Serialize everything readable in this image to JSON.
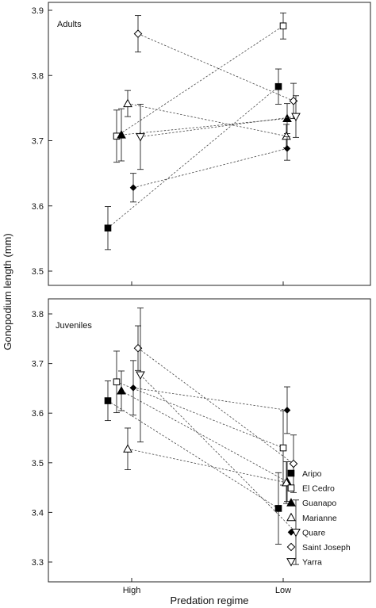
{
  "figure": {
    "ylabel": "Gonopodium length (mm)",
    "xlabel": "Predation regime"
  },
  "chart_data": [
    {
      "type": "line",
      "panel_label": "Adults",
      "categories": [
        "High",
        "Low"
      ],
      "ylim": [
        3.45,
        3.92
      ],
      "yticks": [
        "3.5",
        "3.6",
        "3.7",
        "3.8",
        "3.9"
      ],
      "series": [
        {
          "name": "Aripo",
          "marker": "square-filled",
          "values": [
            3.566,
            3.783
          ],
          "err": [
            0.033,
            0.027
          ]
        },
        {
          "name": "El Cedro",
          "marker": "square-open",
          "values": [
            3.707,
            3.876
          ],
          "err": [
            0.04,
            0.02
          ]
        },
        {
          "name": "Guanapo",
          "marker": "triangle-filled",
          "values": [
            3.709,
            3.734
          ],
          "err": [
            0.04,
            0.023
          ]
        },
        {
          "name": "Marianne",
          "marker": "triangle-open",
          "values": [
            3.757,
            3.707
          ],
          "err": [
            0.02,
            0.018
          ]
        },
        {
          "name": "Quare",
          "marker": "diamond-filled",
          "values": [
            3.628,
            3.688
          ],
          "err": [
            0.022,
            0.018
          ]
        },
        {
          "name": "Saint Joseph",
          "marker": "diamond-open",
          "values": [
            3.864,
            3.761
          ],
          "err": [
            0.028,
            0.027
          ]
        },
        {
          "name": "Yarra",
          "marker": "triangle-down-open",
          "values": [
            3.706,
            3.737
          ],
          "err": [
            0.05,
            0.032
          ]
        }
      ]
    },
    {
      "type": "line",
      "panel_label": "Juveniles",
      "categories": [
        "High",
        "Low"
      ],
      "ylim": [
        3.26,
        3.84
      ],
      "yticks": [
        "3.3",
        "3.4",
        "3.5",
        "3.6",
        "3.7",
        "3.8"
      ],
      "legend_position": "bottom-right",
      "series": [
        {
          "name": "Aripo",
          "marker": "square-filled",
          "values": [
            3.625,
            3.408
          ],
          "err": [
            0.04,
            0.072
          ]
        },
        {
          "name": "El Cedro",
          "marker": "square-open",
          "values": [
            3.663,
            3.53
          ],
          "err": [
            0.062,
            0.075
          ]
        },
        {
          "name": "Guanapo",
          "marker": "triangle-filled",
          "values": [
            3.645,
            3.462
          ],
          "err": [
            0.04,
            0.04
          ]
        },
        {
          "name": "Marianne",
          "marker": "triangle-open",
          "values": [
            3.528,
            3.46
          ],
          "err": [
            0.042,
            0.042
          ]
        },
        {
          "name": "Quare",
          "marker": "diamond-filled",
          "values": [
            3.651,
            3.606
          ],
          "err": [
            0.055,
            0.047
          ]
        },
        {
          "name": "Saint Joseph",
          "marker": "diamond-open",
          "values": [
            3.731,
            3.498
          ],
          "err": [
            0.045,
            0.058
          ]
        },
        {
          "name": "Yarra",
          "marker": "triangle-down-open",
          "values": [
            3.677,
            3.36
          ],
          "err": [
            0.135,
            0.065
          ]
        }
      ]
    }
  ]
}
